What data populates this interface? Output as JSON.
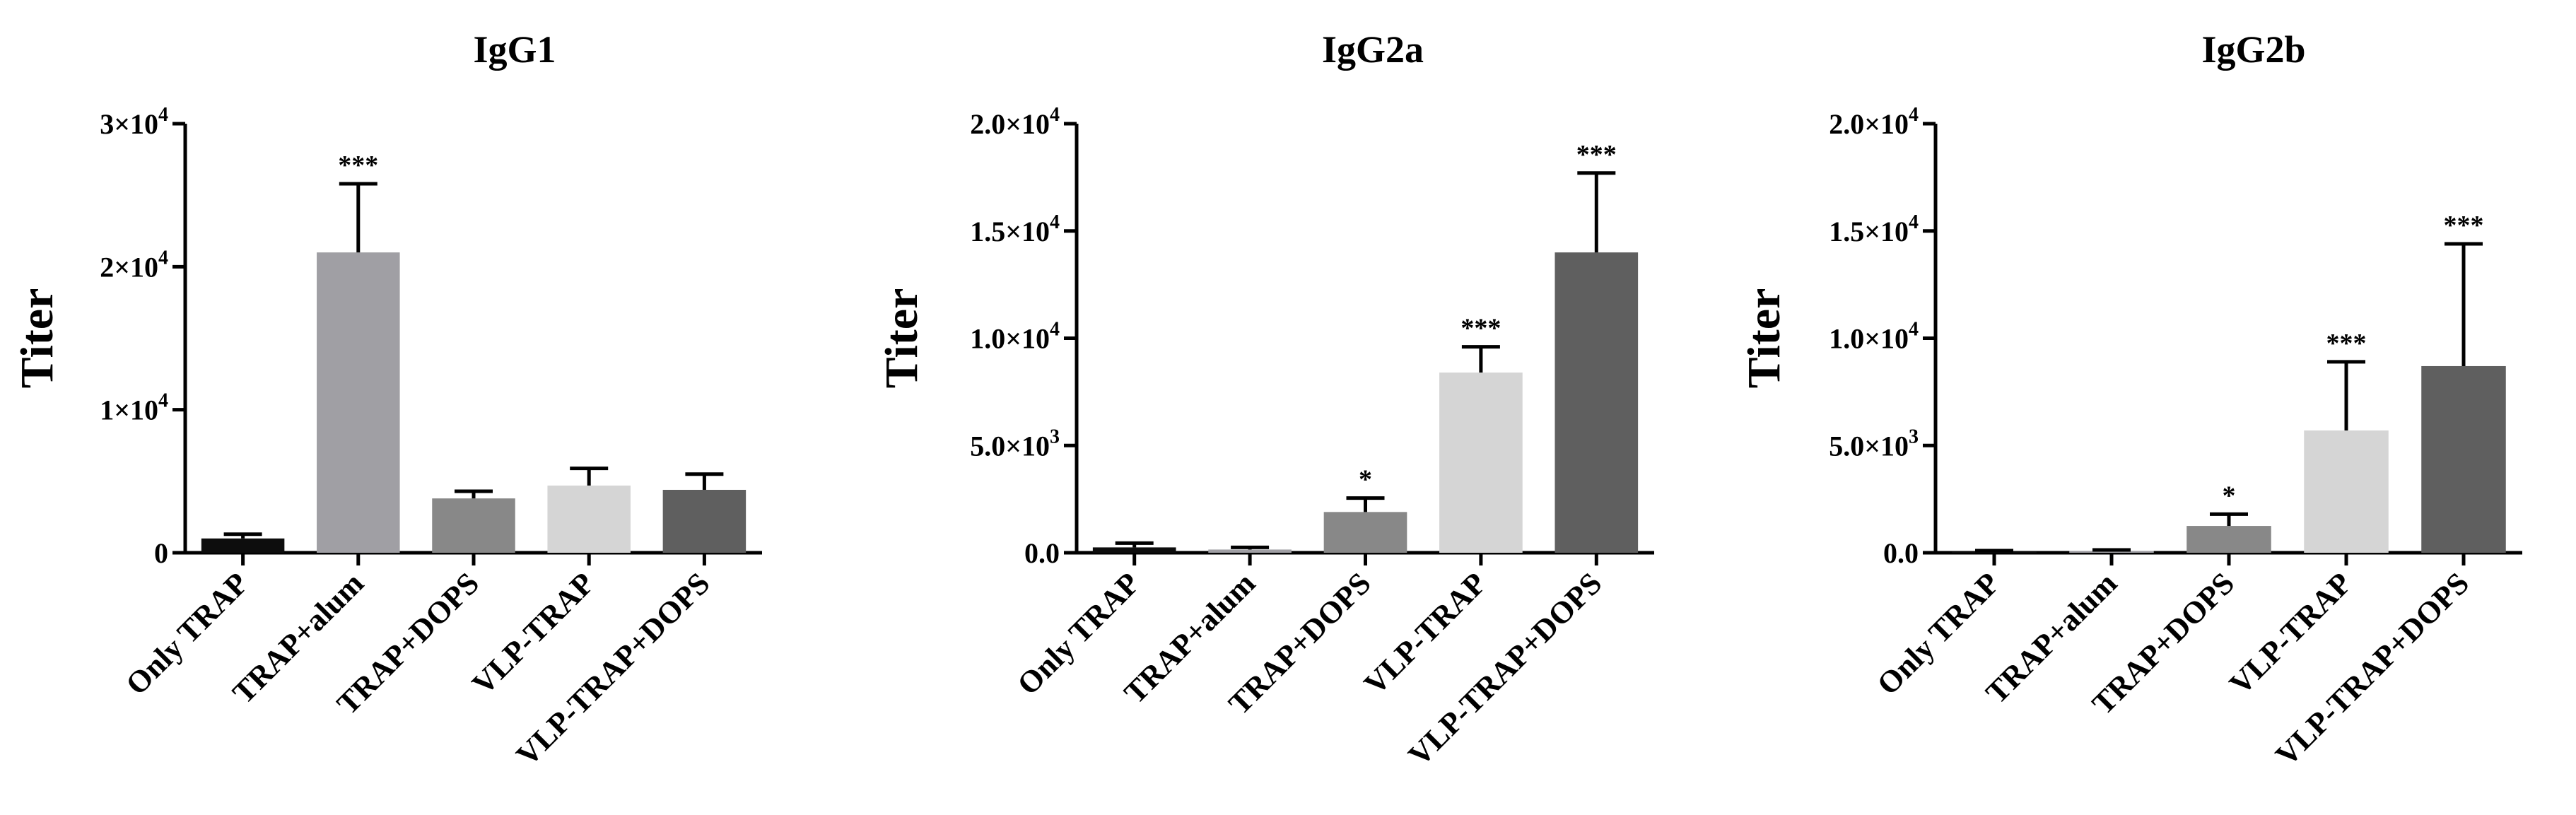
{
  "figure": {
    "colors": [
      "#0d0d0d",
      "#a09fa4",
      "#888888",
      "#d5d5d5",
      "#5f5f5f"
    ]
  },
  "chart_data": [
    {
      "type": "bar",
      "title": "IgG1",
      "ylabel": "Titer",
      "xlabel": "",
      "ylim": [
        0,
        30000
      ],
      "yticks": [
        {
          "value": 0,
          "label": "0",
          "exp": ""
        },
        {
          "value": 10000,
          "label": "1×10",
          "exp": "4"
        },
        {
          "value": 20000,
          "label": "2×10",
          "exp": "4"
        },
        {
          "value": 30000,
          "label": "3×10",
          "exp": "4"
        }
      ],
      "categories": [
        "Only TRAP",
        "TRAP+alum",
        "TRAP+DOPS",
        "VLP-TRAP",
        "VLP-TRAP+DOPS"
      ],
      "values": [
        1000,
        21000,
        3800,
        4700,
        4400
      ],
      "errors": [
        300,
        4800,
        500,
        1200,
        1100
      ],
      "significance": [
        "",
        "***",
        "",
        "",
        ""
      ]
    },
    {
      "type": "bar",
      "title": "IgG2a",
      "ylabel": "Titer",
      "xlabel": "",
      "ylim": [
        0,
        20000
      ],
      "yticks": [
        {
          "value": 0,
          "label": "0.0",
          "exp": ""
        },
        {
          "value": 5000,
          "label": "5.0×10",
          "exp": "3"
        },
        {
          "value": 10000,
          "label": "1.0×10",
          "exp": "4"
        },
        {
          "value": 15000,
          "label": "1.5×10",
          "exp": "4"
        },
        {
          "value": 20000,
          "label": "2.0×10",
          "exp": "4"
        }
      ],
      "categories": [
        "Only TRAP",
        "TRAP+alum",
        "TRAP+DOPS",
        "VLP-TRAP",
        "VLP-TRAP+DOPS"
      ],
      "values": [
        250,
        150,
        1900,
        8400,
        14000
      ],
      "errors": [
        200,
        100,
        650,
        1200,
        3700
      ],
      "significance": [
        "",
        "",
        "*",
        "***",
        "***"
      ]
    },
    {
      "type": "bar",
      "title": "IgG2b",
      "ylabel": "Titer",
      "xlabel": "",
      "ylim": [
        0,
        20000
      ],
      "yticks": [
        {
          "value": 0,
          "label": "0.0",
          "exp": ""
        },
        {
          "value": 5000,
          "label": "5.0×10",
          "exp": "3"
        },
        {
          "value": 10000,
          "label": "1.0×10",
          "exp": "4"
        },
        {
          "value": 15000,
          "label": "1.5×10",
          "exp": "4"
        },
        {
          "value": 20000,
          "label": "2.0×10",
          "exp": "4"
        }
      ],
      "categories": [
        "Only TRAP",
        "TRAP+alum",
        "TRAP+DOPS",
        "VLP-TRAP",
        "VLP-TRAP+DOPS"
      ],
      "values": [
        60,
        80,
        1250,
        5700,
        8700
      ],
      "errors": [
        40,
        50,
        550,
        3200,
        5700
      ],
      "significance": [
        "",
        "",
        "*",
        "***",
        "***"
      ]
    }
  ]
}
